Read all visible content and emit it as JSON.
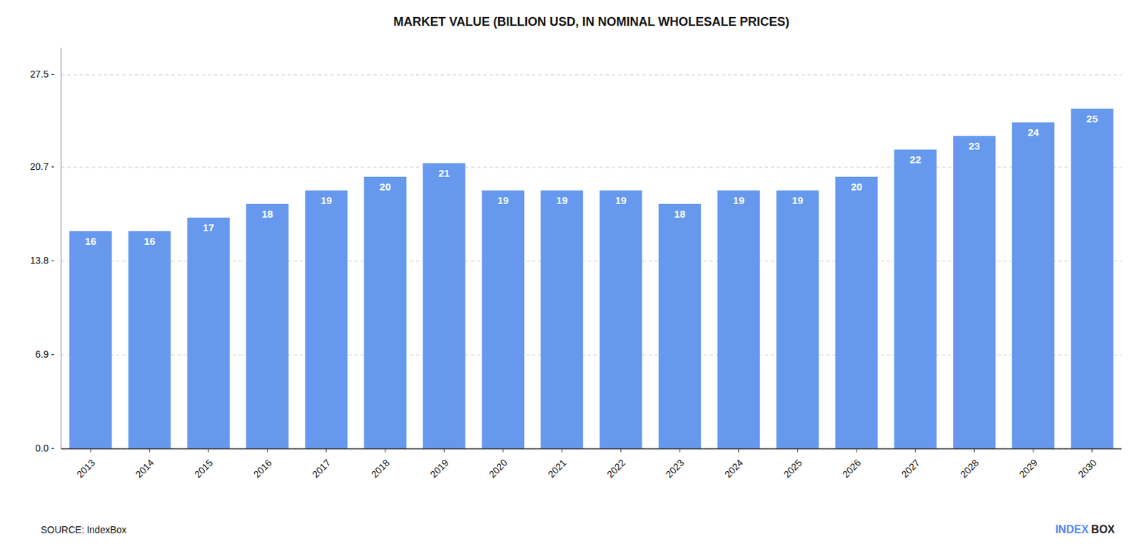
{
  "chart_data": {
    "type": "bar",
    "title": "MARKET VALUE (BILLION USD, IN NOMINAL WHOLESALE PRICES)",
    "categories": [
      "2013",
      "2014",
      "2015",
      "2016",
      "2017",
      "2018",
      "2019",
      "2020",
      "2021",
      "2022",
      "2023",
      "2024",
      "2025",
      "2026",
      "2027",
      "2028",
      "2029",
      "2030"
    ],
    "values": [
      16,
      16,
      17,
      18,
      19,
      20,
      21,
      19,
      19,
      19,
      18,
      19,
      19,
      20,
      22,
      23,
      24,
      25
    ],
    "color": "#6699EE",
    "ylim": [
      0,
      29.5
    ],
    "yticks": [
      {
        "value": 0.0,
        "label": "0.0 -"
      },
      {
        "value": 6.9,
        "label": "6.9 -"
      },
      {
        "value": 13.8,
        "label": "13.8 -"
      },
      {
        "value": 20.7,
        "label": "20.7 -"
      },
      {
        "value": 27.5,
        "label": "27.5 -"
      }
    ],
    "grid": true,
    "data_labels": true,
    "annotations": [
      {
        "text": "SOURCE: IndexBox"
      },
      {
        "text": "INDEX",
        "color": "#5588EE"
      },
      {
        "text": "BOX",
        "color": "#222222"
      }
    ]
  }
}
